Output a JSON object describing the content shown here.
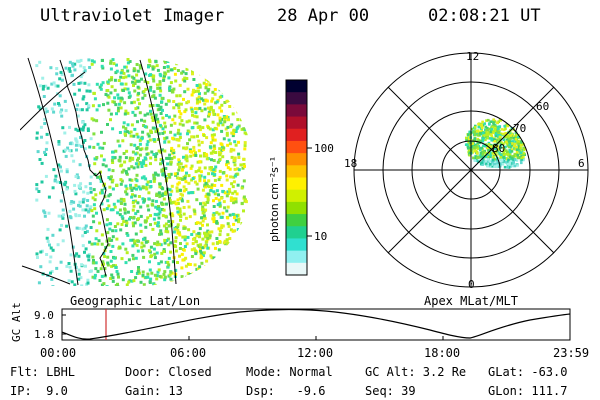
{
  "header": {
    "instrument": "Ultraviolet Imager",
    "date": "28 Apr 00",
    "time": "02:08:21 UT"
  },
  "colorbar": {
    "unit_label": "photon cm⁻²s⁻¹",
    "ticks": [
      "100",
      "10"
    ],
    "colors": [
      "#000030",
      "#3a0a40",
      "#7a0a3a",
      "#b0102a",
      "#e02020",
      "#ff5010",
      "#ff9000",
      "#ffc400",
      "#fff000",
      "#d0f000",
      "#90e000",
      "#40d040",
      "#20d090",
      "#30e0d0",
      "#90f0f0",
      "#e8f8f8"
    ]
  },
  "geo_panel": {
    "label": "Geographic Lat/Lon"
  },
  "polar_panel": {
    "label": "Apex MLat/MLT",
    "mlt_labels": {
      "top": "12",
      "left": "18",
      "right": "6",
      "bottom": "0"
    },
    "lat_labels": [
      "60",
      "70",
      "80"
    ]
  },
  "altitude_plot": {
    "ylabel": "GC Alt",
    "yticks": [
      "9.0",
      "1.8"
    ],
    "xticks": [
      "00:00",
      "06:00",
      "12:00",
      "18:00",
      "23:59"
    ],
    "cursor_time": "02:08"
  },
  "footer": {
    "filter": "Flt: LBHL",
    "door": "Door: Closed",
    "mode": "Mode: Normal",
    "gc_alt": "GC Alt: 3.2 Re",
    "glat": "GLat: -63.0",
    "ip": "IP:  9.0",
    "gain": "Gain: 13",
    "dsp": "Dsp:   -9.6",
    "seq": "Seq: 39",
    "glon": "GLon: 111.7"
  }
}
